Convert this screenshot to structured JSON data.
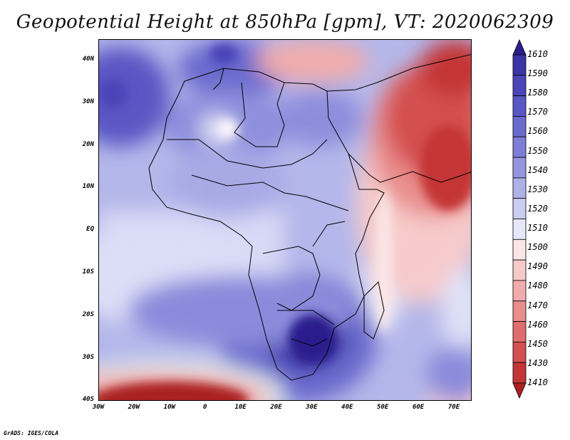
{
  "title": "Geopotential Height at 850hPa [gpm], VT: 2020062309",
  "footer": "GrADS: IGES/COLA",
  "lat_labels": [
    "40N",
    "30N",
    "20N",
    "10N",
    "EQ",
    "10S",
    "20S",
    "30S",
    "40S"
  ],
  "lon_labels": [
    "30W",
    "20W",
    "10W",
    "0",
    "10E",
    "20E",
    "30E",
    "40E",
    "50E",
    "60E",
    "70E"
  ],
  "colorbar": {
    "labels": [
      "1610",
      "1590",
      "1580",
      "1570",
      "1560",
      "1550",
      "1540",
      "1530",
      "1520",
      "1510",
      "1500",
      "1490",
      "1480",
      "1470",
      "1460",
      "1450",
      "1430",
      "1410"
    ],
    "colors": [
      "#2a1f8c",
      "#3b35a6",
      "#4a45b8",
      "#5a57c4",
      "#6b6acd",
      "#7e7ed6",
      "#9596df",
      "#aeb0e8",
      "#cacdf2",
      "#e6e8f9",
      "#fbe6e6",
      "#f6caca",
      "#f0acac",
      "#e98d8d",
      "#e06d6d",
      "#d44f4f",
      "#c43535",
      "#ab2020"
    ]
  },
  "map": {
    "extent_lon": [
      -30,
      75
    ],
    "extent_lat": [
      -40,
      45
    ]
  }
}
